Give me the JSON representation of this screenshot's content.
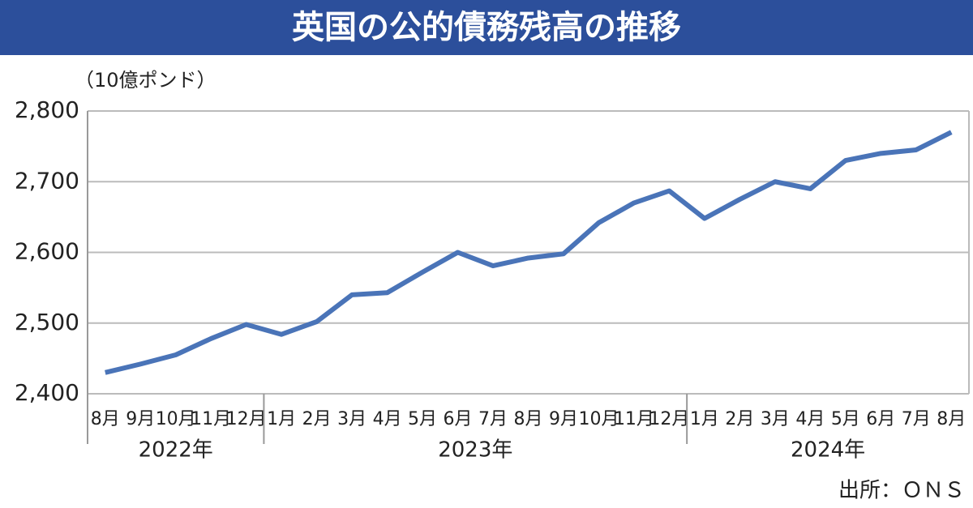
{
  "chart_data": {
    "type": "line",
    "title": "英国の公的債務残高の推移",
    "unit_label": "（10億ポンド）",
    "source": "出所：ＯＮＳ",
    "groups": [
      {
        "label": "2022年",
        "categories": [
          "8月",
          "9月",
          "10月",
          "11月",
          "12月"
        ]
      },
      {
        "label": "2023年",
        "categories": [
          "1月",
          "2月",
          "3月",
          "4月",
          "5月",
          "6月",
          "7月",
          "8月",
          "9月",
          "10月",
          "11月",
          "12月"
        ]
      },
      {
        "label": "2024年",
        "categories": [
          "1月",
          "2月",
          "3月",
          "4月",
          "5月",
          "6月",
          "7月",
          "8月"
        ]
      }
    ],
    "series": [
      {
        "color": "#4a74b8",
        "values": [
          2430,
          2442,
          2455,
          2478,
          2498,
          2484,
          2502,
          2540,
          2543,
          2572,
          2600,
          2581,
          2592,
          2598,
          2642,
          2670,
          2687,
          2648,
          2675,
          2700,
          2690,
          2730,
          2740,
          2745,
          2770
        ]
      }
    ],
    "ylim": [
      2400,
      2800
    ],
    "yticks": [
      {
        "value": 2400,
        "label": "2,400"
      },
      {
        "value": 2500,
        "label": "2,500"
      },
      {
        "value": 2600,
        "label": "2,600"
      },
      {
        "value": 2700,
        "label": "2,700"
      },
      {
        "value": 2800,
        "label": "2,800"
      }
    ],
    "grid": true
  }
}
